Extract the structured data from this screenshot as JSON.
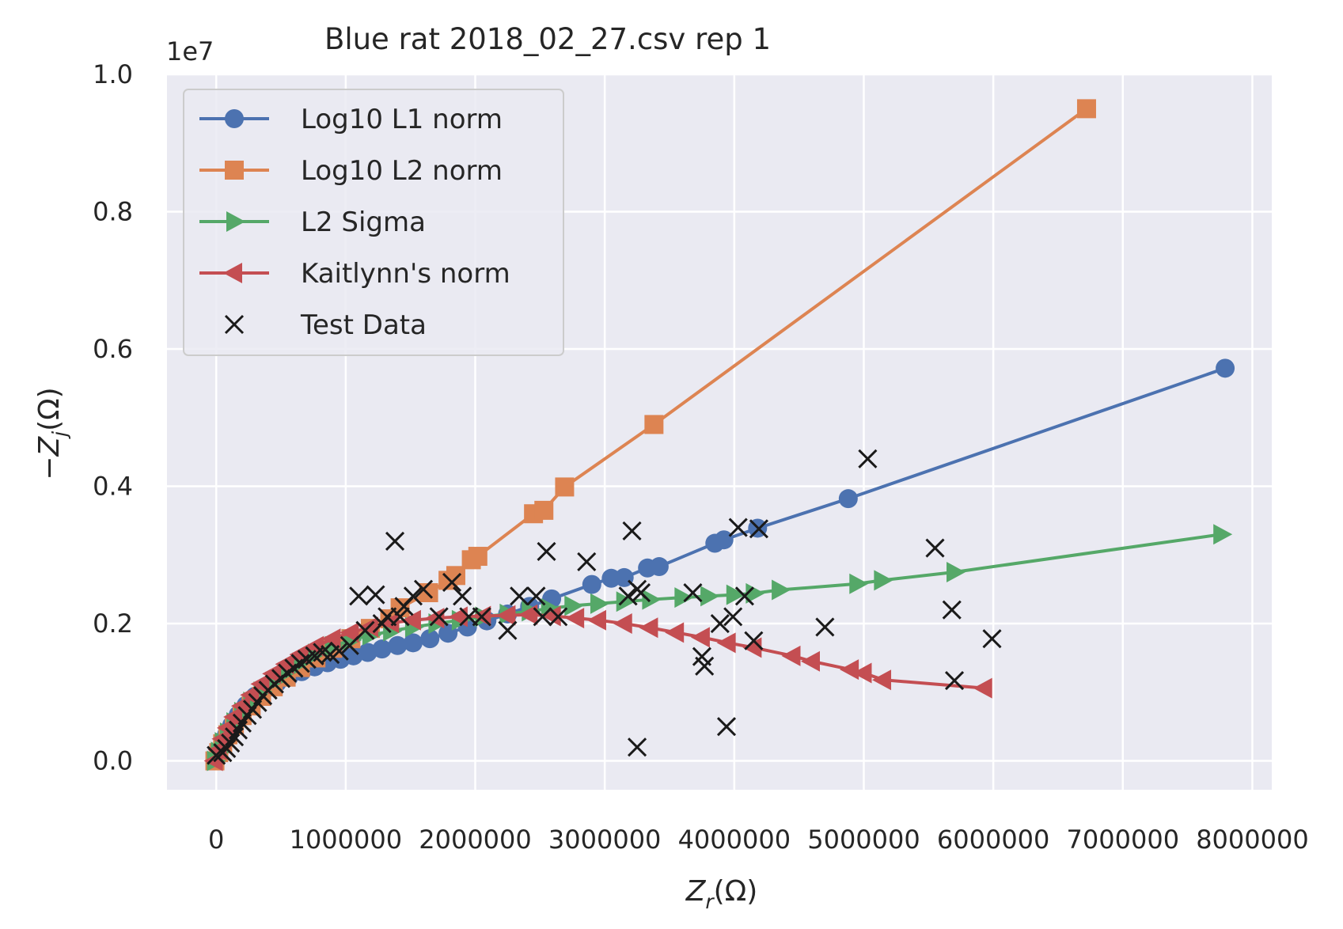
{
  "chart_data": {
    "type": "scatter",
    "title": "Blue rat 2018_02_27.csv rep 1",
    "xlabel_base": "Z",
    "xlabel_sub": "r",
    "xlabel_unit": "(Ω)",
    "ylabel_prefix": "−Z",
    "ylabel_sub": "j",
    "ylabel_unit": "(Ω)",
    "y_offset_text": "1e7",
    "xlim": [
      -380000,
      8150000
    ],
    "ylim": [
      -0.042,
      1.0
    ],
    "x_ticks": [
      0,
      1000000,
      2000000,
      3000000,
      4000000,
      5000000,
      6000000,
      7000000,
      8000000
    ],
    "x_tick_labels": [
      "0",
      "1000000",
      "2000000",
      "3000000",
      "4000000",
      "5000000",
      "6000000",
      "7000000",
      "8000000"
    ],
    "y_ticks": [
      0.0,
      0.2,
      0.4,
      0.6,
      0.8,
      1.0
    ],
    "y_tick_labels": [
      "0.0",
      "0.2",
      "0.4",
      "0.6",
      "0.8",
      "1.0"
    ],
    "grid": true,
    "legend_position": "upper-left",
    "colors": {
      "background": "#eaeaf2",
      "grid": "#ffffff",
      "text": "#262626",
      "blue": "#4c72b0",
      "orange": "#dd8452",
      "green": "#55a868",
      "red": "#c44e52",
      "black": "#1a1a1a"
    },
    "series": [
      {
        "name": "Log10 L1 norm",
        "marker": "circle",
        "line": true,
        "color": "#4c72b0",
        "x": [
          -10000,
          20000,
          50000,
          80000,
          120000,
          170000,
          230000,
          300000,
          380000,
          470000,
          560000,
          660000,
          760000,
          860000,
          960000,
          1060000,
          1170000,
          1280000,
          1400000,
          1520000,
          1650000,
          1790000,
          1940000,
          2090000,
          2250000,
          2420000,
          2590000,
          2900000,
          3050000,
          3150000,
          3330000,
          3420000,
          3850000,
          3920000,
          4180000,
          4880000,
          7790000
        ],
        "y": [
          0.0,
          0.012,
          0.025,
          0.038,
          0.052,
          0.067,
          0.081,
          0.094,
          0.105,
          0.114,
          0.122,
          0.13,
          0.137,
          0.143,
          0.148,
          0.153,
          0.158,
          0.163,
          0.168,
          0.172,
          0.178,
          0.186,
          0.195,
          0.204,
          0.214,
          0.225,
          0.236,
          0.257,
          0.266,
          0.267,
          0.281,
          0.283,
          0.317,
          0.322,
          0.339,
          0.382,
          0.572
        ]
      },
      {
        "name": "Log10 L2 norm",
        "marker": "square",
        "line": true,
        "color": "#dd8452",
        "x": [
          -10000,
          20000,
          50000,
          90000,
          140000,
          200000,
          270000,
          350000,
          440000,
          540000,
          650000,
          770000,
          900000,
          1040000,
          1190000,
          1340000,
          1420000,
          1640000,
          1790000,
          1850000,
          1970000,
          2020000,
          2450000,
          2530000,
          2690000,
          3380000,
          6720000
        ],
        "y": [
          0.0,
          0.012,
          0.025,
          0.038,
          0.052,
          0.066,
          0.08,
          0.094,
          0.108,
          0.122,
          0.136,
          0.15,
          0.164,
          0.178,
          0.193,
          0.207,
          0.223,
          0.245,
          0.263,
          0.27,
          0.293,
          0.298,
          0.36,
          0.365,
          0.399,
          0.49,
          0.95
        ]
      },
      {
        "name": "L2 Sigma",
        "marker": "triangle-right",
        "line": true,
        "color": "#55a868",
        "x": [
          -10000,
          20000,
          50000,
          90000,
          140000,
          200000,
          270000,
          350000,
          440000,
          540000,
          650000,
          770000,
          900000,
          1040000,
          1190000,
          1350000,
          1520000,
          1700000,
          1880000,
          2060000,
          2250000,
          2420000,
          2570000,
          2750000,
          2950000,
          3150000,
          3350000,
          3600000,
          3800000,
          4000000,
          4150000,
          4350000,
          4950000,
          5140000,
          5700000,
          7760000
        ],
        "y": [
          0.0,
          0.013,
          0.027,
          0.041,
          0.056,
          0.071,
          0.086,
          0.101,
          0.115,
          0.129,
          0.143,
          0.156,
          0.167,
          0.176,
          0.183,
          0.189,
          0.195,
          0.2,
          0.205,
          0.21,
          0.214,
          0.218,
          0.222,
          0.226,
          0.229,
          0.232,
          0.235,
          0.238,
          0.24,
          0.242,
          0.244,
          0.249,
          0.258,
          0.263,
          0.275,
          0.33
        ]
      },
      {
        "name": "Kaitlynn's norm",
        "marker": "triangle-left",
        "line": true,
        "color": "#c44e52",
        "x": [
          -10000,
          20000,
          50000,
          90000,
          140000,
          200000,
          270000,
          350000,
          440000,
          540000,
          650000,
          770000,
          900000,
          1040000,
          1190000,
          1350000,
          1520000,
          1700000,
          1880000,
          2060000,
          2250000,
          2420000,
          2600000,
          2780000,
          2950000,
          3150000,
          3350000,
          3550000,
          3750000,
          3950000,
          4150000,
          4450000,
          4600000,
          4900000,
          5000000,
          5150000,
          5930000
        ],
        "y": [
          0.0,
          0.016,
          0.032,
          0.048,
          0.064,
          0.08,
          0.096,
          0.112,
          0.127,
          0.141,
          0.155,
          0.167,
          0.178,
          0.187,
          0.195,
          0.201,
          0.205,
          0.208,
          0.21,
          0.211,
          0.212,
          0.213,
          0.211,
          0.208,
          0.205,
          0.2,
          0.194,
          0.187,
          0.18,
          0.172,
          0.165,
          0.153,
          0.145,
          0.133,
          0.128,
          0.118,
          0.106
        ]
      },
      {
        "name": "Test Data",
        "marker": "x",
        "line": false,
        "color": "#1a1a1a",
        "x": [
          0,
          50000,
          80000,
          110000,
          140000,
          170000,
          200000,
          240000,
          280000,
          320000,
          360000,
          400000,
          450000,
          500000,
          550000,
          600000,
          650000,
          700000,
          760000,
          820000,
          880000,
          950000,
          1030000,
          1100000,
          1150000,
          1230000,
          1280000,
          1320000,
          1380000,
          1420000,
          1450000,
          1520000,
          1600000,
          1720000,
          1820000,
          1900000,
          1950000,
          2050000,
          2250000,
          2340000,
          2470000,
          2520000,
          2550000,
          2640000,
          2860000,
          3180000,
          3210000,
          3250000,
          3250000,
          3280000,
          3680000,
          3750000,
          3770000,
          3890000,
          3940000,
          3990000,
          4030000,
          4080000,
          4150000,
          4190000,
          4700000,
          5030000,
          5550000,
          5680000,
          5700000,
          5990000
        ],
        "y": [
          0.008,
          0.012,
          0.018,
          0.026,
          0.035,
          0.045,
          0.055,
          0.066,
          0.075,
          0.085,
          0.095,
          0.103,
          0.112,
          0.12,
          0.128,
          0.135,
          0.142,
          0.148,
          0.153,
          0.158,
          0.155,
          0.16,
          0.168,
          0.24,
          0.19,
          0.242,
          0.2,
          0.21,
          0.32,
          0.21,
          0.225,
          0.24,
          0.25,
          0.21,
          0.26,
          0.24,
          0.21,
          0.21,
          0.19,
          0.24,
          0.24,
          0.21,
          0.305,
          0.21,
          0.29,
          0.24,
          0.335,
          0.25,
          0.02,
          0.245,
          0.245,
          0.152,
          0.138,
          0.2,
          0.05,
          0.21,
          0.34,
          0.24,
          0.175,
          0.338,
          0.195,
          0.44,
          0.31,
          0.22,
          0.117,
          0.178
        ]
      }
    ]
  }
}
